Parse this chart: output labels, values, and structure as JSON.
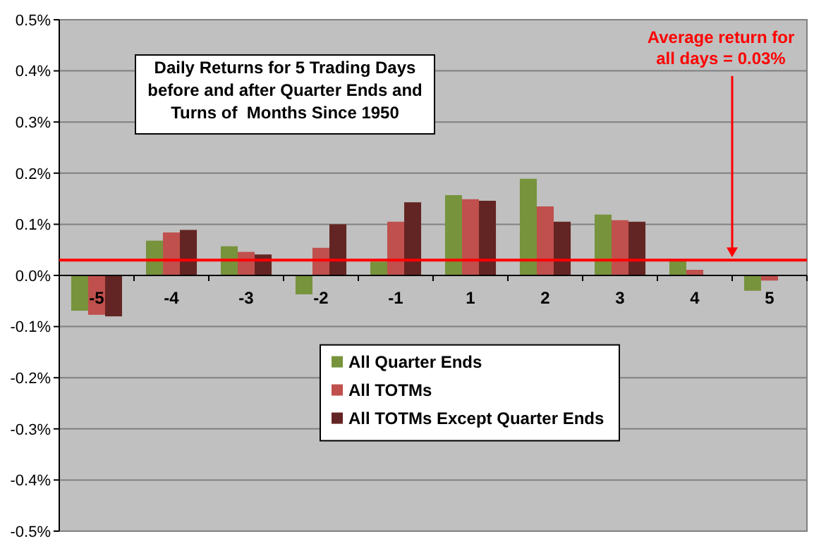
{
  "chart_data": {
    "type": "bar",
    "title": "Daily Returns for 5 Trading Days before and after Quarter Ends and Turns of  Months Since 1950",
    "categories": [
      "-5",
      "-4",
      "-3",
      "-2",
      "-1",
      "1",
      "2",
      "3",
      "4",
      "5"
    ],
    "series": [
      {
        "name": "All Quarter Ends",
        "color": "#77933c",
        "values": [
          -0.069,
          0.068,
          0.057,
          -0.037,
          0.027,
          0.157,
          0.189,
          0.119,
          0.032,
          -0.03
        ]
      },
      {
        "name": "All TOTMs",
        "color": "#c0504d",
        "values": [
          -0.077,
          0.084,
          0.046,
          0.054,
          0.105,
          0.149,
          0.135,
          0.108,
          0.011,
          -0.01
        ]
      },
      {
        "name": "All TOTMs Except Quarter Ends",
        "color": "#632523",
        "values": [
          -0.08,
          0.089,
          0.041,
          0.1,
          0.143,
          0.146,
          0.105,
          0.105,
          null,
          null
        ]
      }
    ],
    "ylim": [
      -0.5,
      0.5
    ],
    "yticks": [
      {
        "value": -0.5,
        "label": "-0.5%"
      },
      {
        "value": -0.4,
        "label": "-0.4%"
      },
      {
        "value": -0.3,
        "label": "-0.3%"
      },
      {
        "value": -0.2,
        "label": "-0.2%"
      },
      {
        "value": -0.1,
        "label": "-0.1%"
      },
      {
        "value": 0,
        "label": "0.0%"
      },
      {
        "value": 0.1,
        "label": "0.1%"
      },
      {
        "value": 0.2,
        "label": "0.2%"
      },
      {
        "value": 0.3,
        "label": "0.3%"
      },
      {
        "value": 0.4,
        "label": "0.4%"
      },
      {
        "value": 0.5,
        "label": "0.5%"
      }
    ],
    "grid": "y",
    "legend": "bottom",
    "ref_lines": [
      {
        "axis": "y",
        "value": 0.03,
        "label": "Average return for all days = 0.03%",
        "color": "#ff0000"
      }
    ]
  }
}
